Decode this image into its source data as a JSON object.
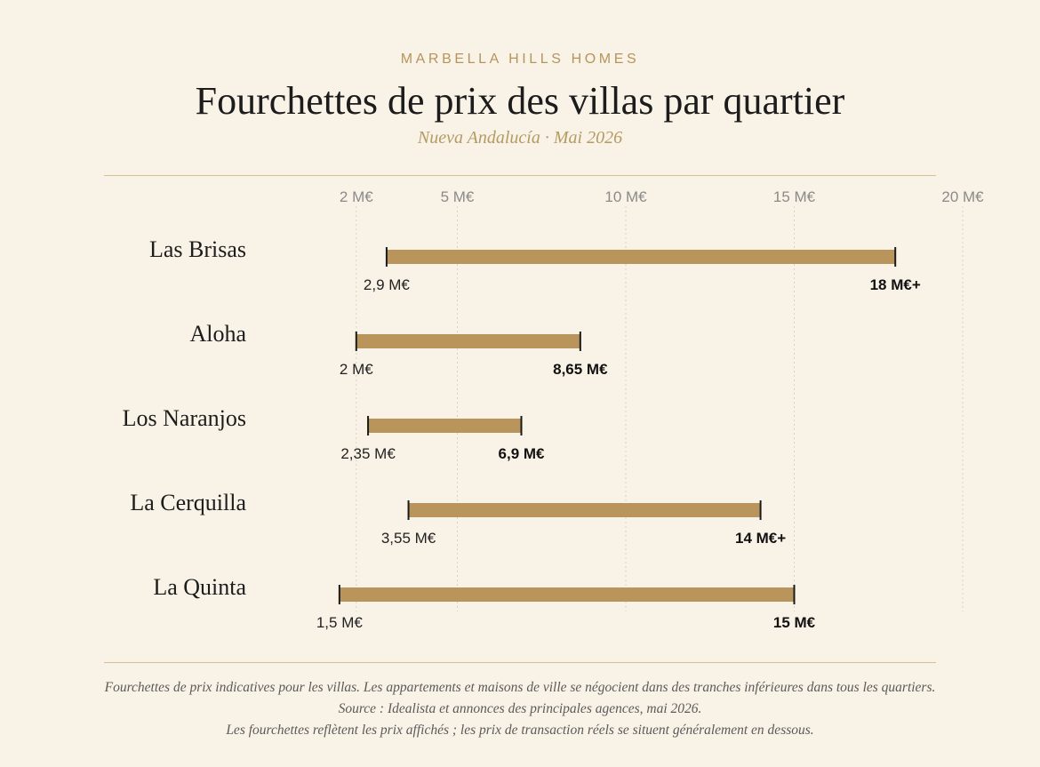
{
  "header": {
    "brand": "MARBELLA HILLS HOMES",
    "title": "Fourchettes de prix des villas par quartier",
    "subtitle": "Nueva Andalucía · Mai 2026"
  },
  "colors": {
    "bar": "#b9945b",
    "grid": "#d9d2c6",
    "tick_text": "#8a8a8a",
    "accent": "#b5955a"
  },
  "chart_data": {
    "type": "range-bar",
    "xlim": [
      0,
      20
    ],
    "unit": "M€",
    "ticks": [
      {
        "value": 2,
        "label": "2 M€"
      },
      {
        "value": 5,
        "label": "5 M€"
      },
      {
        "value": 10,
        "label": "10 M€"
      },
      {
        "value": 15,
        "label": "15 M€"
      },
      {
        "value": 20,
        "label": "20 M€"
      }
    ],
    "rows": [
      {
        "name": "Las Brisas",
        "min": 2.9,
        "max": 18,
        "min_label": "2,9 M€",
        "max_label": "18 M€+"
      },
      {
        "name": "Aloha",
        "min": 2,
        "max": 8.65,
        "min_label": "2 M€",
        "max_label": "8,65 M€"
      },
      {
        "name": "Los Naranjos",
        "min": 2.35,
        "max": 6.9,
        "min_label": "2,35 M€",
        "max_label": "6,9 M€"
      },
      {
        "name": "La Cerquilla",
        "min": 3.55,
        "max": 14,
        "min_label": "3,55 M€",
        "max_label": "14 M€+"
      },
      {
        "name": "La Quinta",
        "min": 1.5,
        "max": 15,
        "min_label": "1,5 M€",
        "max_label": "15 M€"
      }
    ],
    "grid": true
  },
  "footer": {
    "note1": "Fourchettes de prix indicatives pour les villas. Les appartements et maisons de ville se négocient dans des tranches inférieures dans tous les quartiers.",
    "note2": "Source : Idealista et annonces des principales agences, mai 2026.",
    "note3": "Les fourchettes reflètent les prix affichés ; les prix de transaction réels se situent généralement en dessous."
  }
}
